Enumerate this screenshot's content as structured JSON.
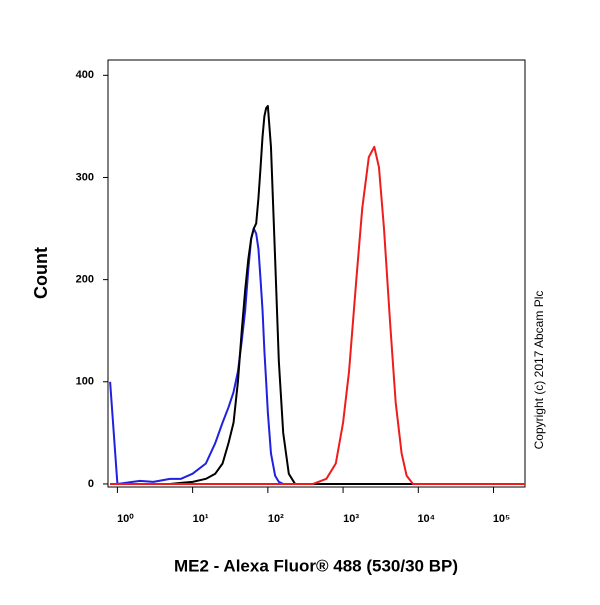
{
  "chart_data": {
    "type": "line",
    "xlabel": "ME2 - Alexa Fluor® 488 (530/30 BP)",
    "ylabel": "Count",
    "annotation": "Copyright (c) 2017 Abcam Plc",
    "xscale": "log",
    "xlim": [
      0.75,
      262144
    ],
    "ylim": [
      -3,
      415
    ],
    "xticks": [
      {
        "value": 1,
        "label": "10⁰"
      },
      {
        "value": 10,
        "label": "10¹"
      },
      {
        "value": 100,
        "label": "10²"
      },
      {
        "value": 1000,
        "label": "10³"
      },
      {
        "value": 10000,
        "label": "10⁴"
      },
      {
        "value": 100000,
        "label": "10⁵"
      }
    ],
    "yticks": [
      0,
      100,
      200,
      300,
      400
    ],
    "x": [
      0.8,
      1,
      2,
      3,
      5,
      7,
      10,
      15,
      20,
      25,
      30,
      35,
      40,
      45,
      50,
      55,
      60,
      65,
      70,
      75,
      80,
      85,
      90,
      95,
      100,
      110,
      125,
      140,
      160,
      190,
      230,
      300,
      400,
      600,
      800,
      1000,
      1200,
      1500,
      1800,
      2200,
      2600,
      3000,
      3500,
      4200,
      5000,
      6000,
      7000,
      8500,
      10000,
      262144
    ],
    "series": [
      {
        "color": "#2020e0",
        "values": [
          100,
          0,
          3,
          2,
          5,
          5,
          10,
          20,
          40,
          60,
          75,
          90,
          110,
          140,
          170,
          210,
          240,
          250,
          245,
          230,
          200,
          170,
          130,
          100,
          70,
          30,
          8,
          2,
          0,
          0,
          0,
          0,
          0,
          0,
          0,
          0,
          0,
          0,
          0,
          0,
          0,
          0,
          0,
          0,
          0,
          0,
          0,
          0,
          0,
          0
        ]
      },
      {
        "color": "#000000",
        "values": [
          0,
          0,
          0,
          0,
          0,
          1,
          2,
          5,
          10,
          20,
          40,
          60,
          100,
          150,
          190,
          220,
          240,
          250,
          255,
          280,
          310,
          340,
          360,
          368,
          370,
          330,
          220,
          120,
          50,
          10,
          0,
          0,
          0,
          0,
          0,
          0,
          0,
          0,
          0,
          0,
          0,
          0,
          0,
          0,
          0,
          0,
          0,
          0,
          0,
          0
        ]
      },
      {
        "color": "#ee1c1c",
        "values": [
          0,
          0,
          0,
          0,
          0,
          0,
          0,
          0,
          0,
          0,
          0,
          0,
          0,
          0,
          0,
          0,
          0,
          0,
          0,
          0,
          0,
          0,
          0,
          0,
          0,
          0,
          0,
          0,
          0,
          0,
          0,
          0,
          0,
          5,
          20,
          60,
          110,
          200,
          270,
          320,
          330,
          310,
          250,
          160,
          80,
          30,
          8,
          0,
          0,
          0
        ]
      }
    ]
  }
}
